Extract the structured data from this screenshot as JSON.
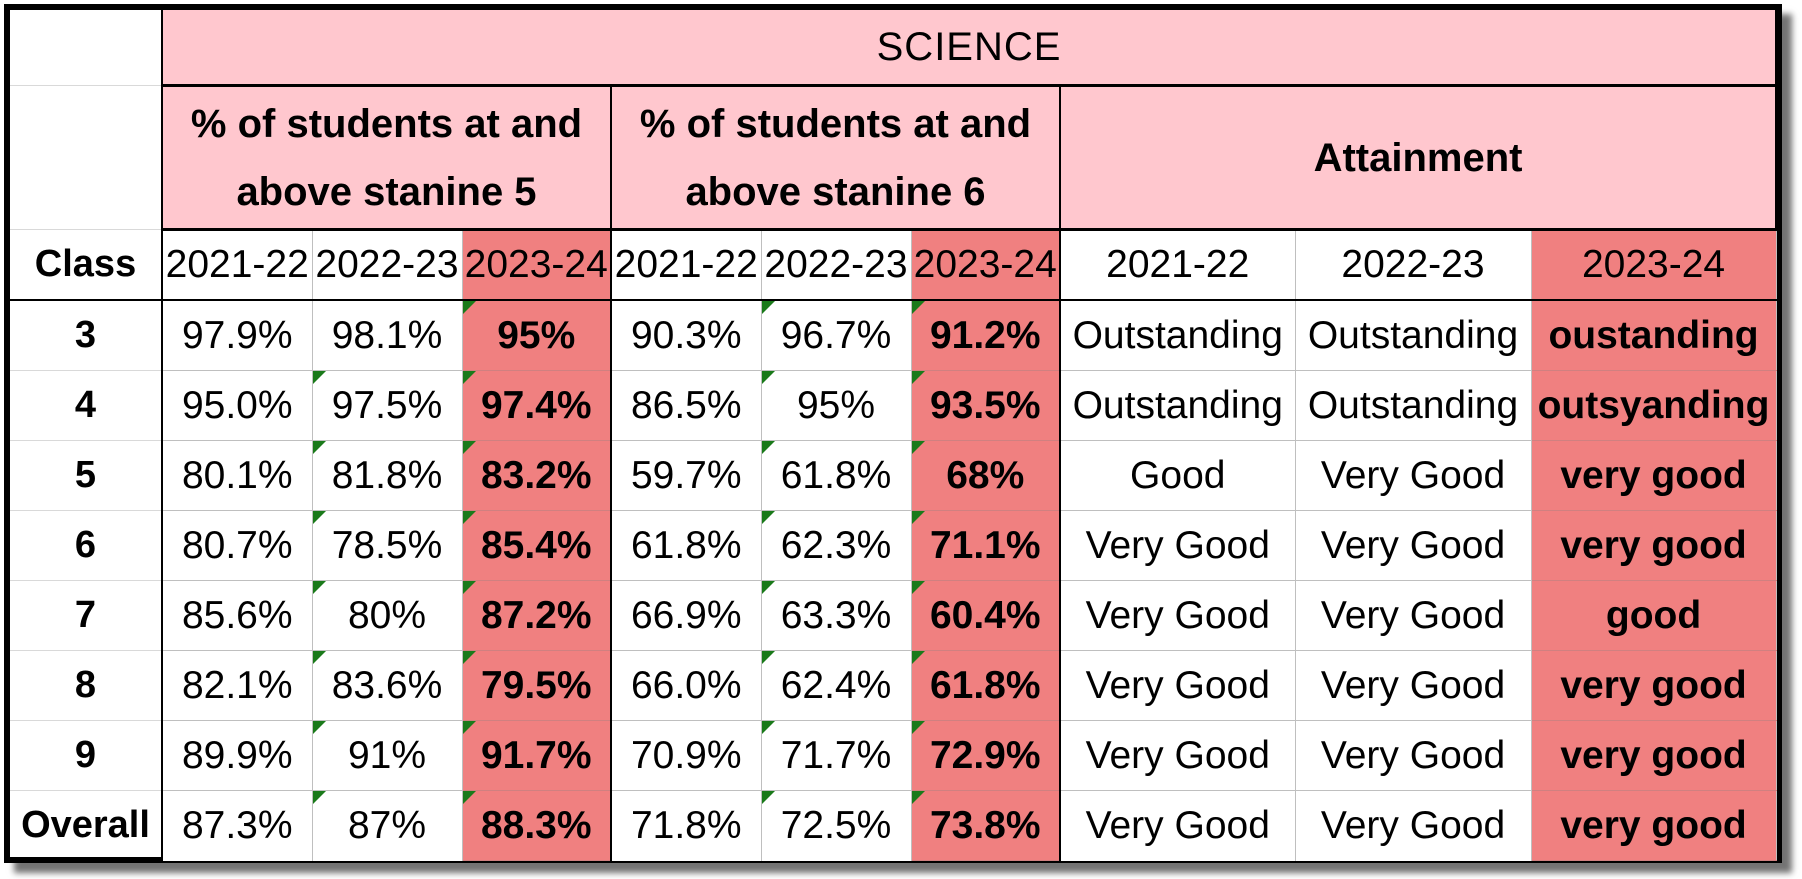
{
  "subject": "SCIENCE",
  "groups": [
    "% of students at and above stanine 5",
    "% of students at and above stanine 6",
    "Attainment"
  ],
  "class_header": "Class",
  "years": [
    "2021-22",
    "2022-23",
    "2023-24"
  ],
  "highlight_color": "#f08080",
  "header_fill": "#ffc7ce",
  "rows": [
    {
      "class": "3",
      "s5": [
        "97.9%",
        "98.1%",
        "95%"
      ],
      "s6": [
        "90.3%",
        "96.7%",
        "91.2%"
      ],
      "att": [
        "Outstanding",
        "Outstanding",
        "oustanding"
      ]
    },
    {
      "class": "4",
      "s5": [
        "95.0%",
        "97.5%",
        "97.4%"
      ],
      "s6": [
        "86.5%",
        "95%",
        "93.5%"
      ],
      "att": [
        "Outstanding",
        "Outstanding",
        "outsyanding"
      ]
    },
    {
      "class": "5",
      "s5": [
        "80.1%",
        "81.8%",
        "83.2%"
      ],
      "s6": [
        "59.7%",
        "61.8%",
        "68%"
      ],
      "att": [
        "Good",
        "Very Good",
        "very good"
      ]
    },
    {
      "class": "6",
      "s5": [
        "80.7%",
        "78.5%",
        "85.4%"
      ],
      "s6": [
        "61.8%",
        "62.3%",
        "71.1%"
      ],
      "att": [
        "Very Good",
        "Very Good",
        "very good"
      ]
    },
    {
      "class": "7",
      "s5": [
        "85.6%",
        "80%",
        "87.2%"
      ],
      "s6": [
        "66.9%",
        "63.3%",
        "60.4%"
      ],
      "att": [
        "Very Good",
        "Very Good",
        "good"
      ]
    },
    {
      "class": "8",
      "s5": [
        "82.1%",
        "83.6%",
        "79.5%"
      ],
      "s6": [
        "66.0%",
        "62.4%",
        "61.8%"
      ],
      "att": [
        "Very Good",
        "Very Good",
        "very good"
      ]
    },
    {
      "class": "9",
      "s5": [
        "89.9%",
        "91%",
        "91.7%"
      ],
      "s6": [
        "70.9%",
        "71.7%",
        "72.9%"
      ],
      "att": [
        "Very Good",
        "Very Good",
        "very good"
      ]
    },
    {
      "class": "Overall",
      "s5": [
        "87.3%",
        "87%",
        "88.3%"
      ],
      "s6": [
        "71.8%",
        "72.5%",
        "73.8%"
      ],
      "att": [
        "Very Good",
        "Very Good",
        "very good"
      ]
    }
  ]
}
